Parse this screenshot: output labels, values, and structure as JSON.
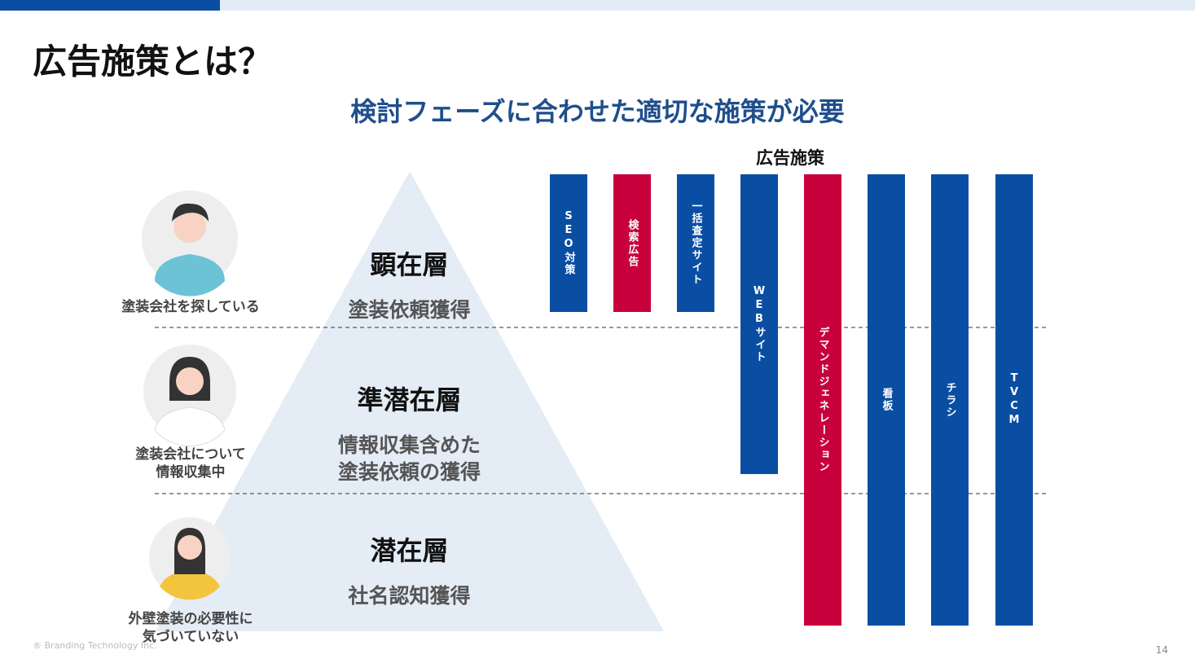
{
  "header": {
    "title": "広告施策とは？",
    "subtitle": "検討フェーズに合わせた適切な施策が必要"
  },
  "measures": {
    "title": "広告施策",
    "items": [
      "SEO対策",
      "検索広告",
      "一括査定サイト",
      "WEBサイト",
      "デマンドジェネレーション",
      "看板",
      "チラシ",
      "TVCM"
    ]
  },
  "tiers": [
    {
      "name": "顕在層",
      "goal": [
        "塗装依頼獲得"
      ]
    },
    {
      "name": "準潜在層",
      "goal": [
        "情報収集含めた",
        "塗装依頼の獲得"
      ]
    },
    {
      "name": "潜在層",
      "goal": [
        "社名認知獲得"
      ]
    }
  ],
  "personas": [
    [
      "塗装会社を探している"
    ],
    [
      "塗装会社について",
      "情報収集中"
    ],
    [
      "外壁塗装の必要性に",
      "気づいていない"
    ]
  ],
  "footer": {
    "copyright": "® Branding Technology Inc.",
    "page": "14"
  }
}
